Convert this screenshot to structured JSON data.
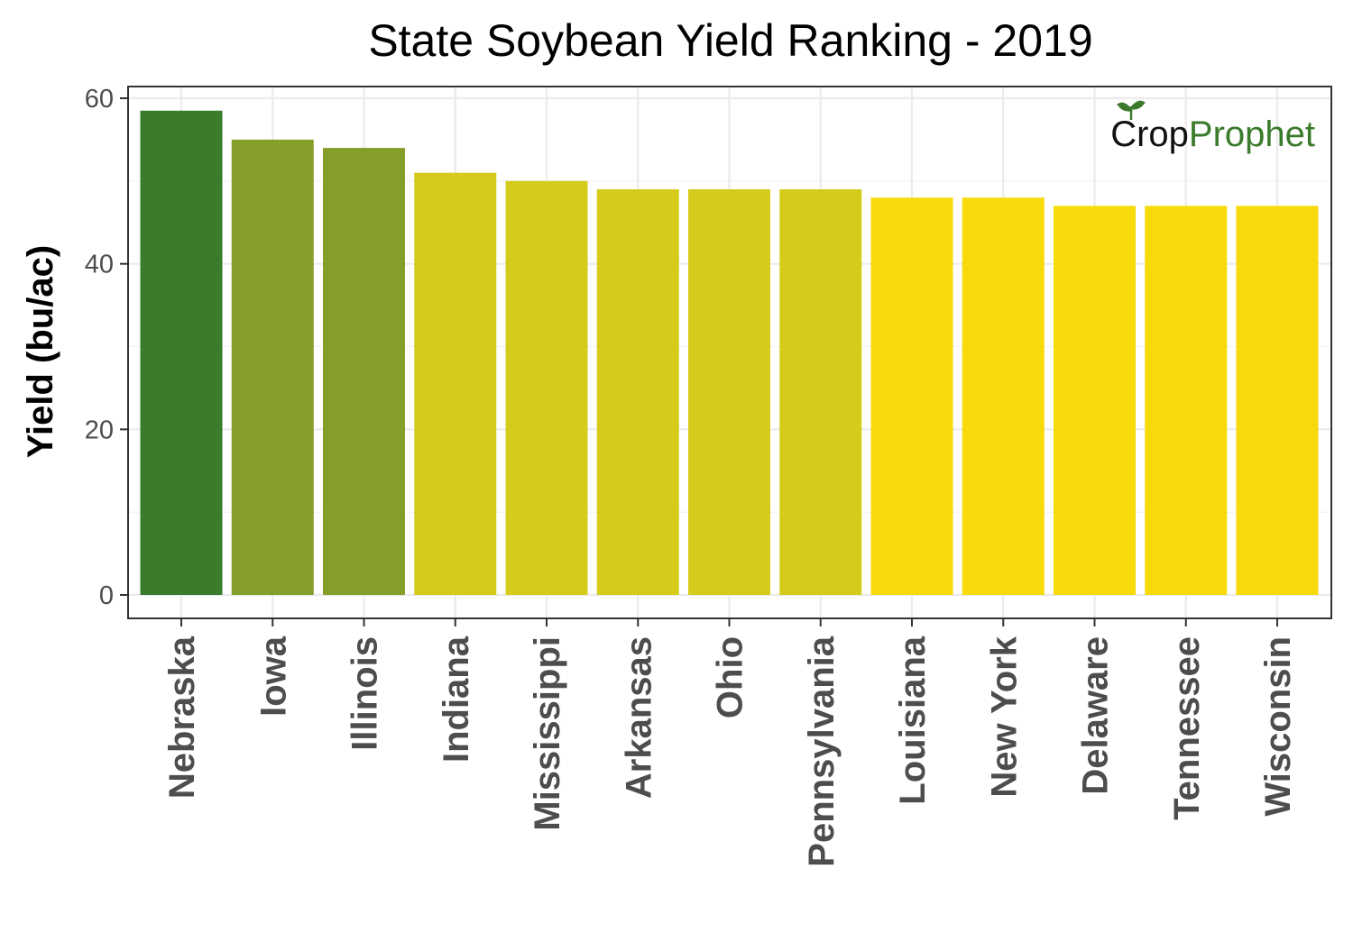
{
  "chart_data": {
    "type": "bar",
    "title": "State Soybean Yield Ranking - 2019",
    "xlabel": "",
    "ylabel": "Yield (bu/ac)",
    "ylim": [
      0,
      60
    ],
    "yticks": [
      0,
      20,
      40,
      60
    ],
    "grid": true,
    "legend": "none",
    "categories": [
      "Nebraska",
      "Iowa",
      "Illinois",
      "Indiana",
      "Mississippi",
      "Arkansas",
      "Ohio",
      "Pennsylvania",
      "Louisiana",
      "New York",
      "Delaware",
      "Tennessee",
      "Wisconsin"
    ],
    "values": [
      58.5,
      55,
      54,
      51,
      50,
      49,
      49,
      49,
      48,
      48,
      47,
      47,
      47
    ],
    "bar_colors": [
      "#3a7b2c",
      "#859d29",
      "#859d29",
      "#d4cb1b",
      "#d4cb1b",
      "#d4cb1b",
      "#d4cb1b",
      "#d4cb1b",
      "#f7da0a",
      "#f7da0a",
      "#f7da0a",
      "#f7da0a",
      "#f7da0a"
    ]
  },
  "logo": {
    "part1": "Crop",
    "part2": "Prophet",
    "color1": "#111111",
    "color2": "#3a7b2c"
  }
}
